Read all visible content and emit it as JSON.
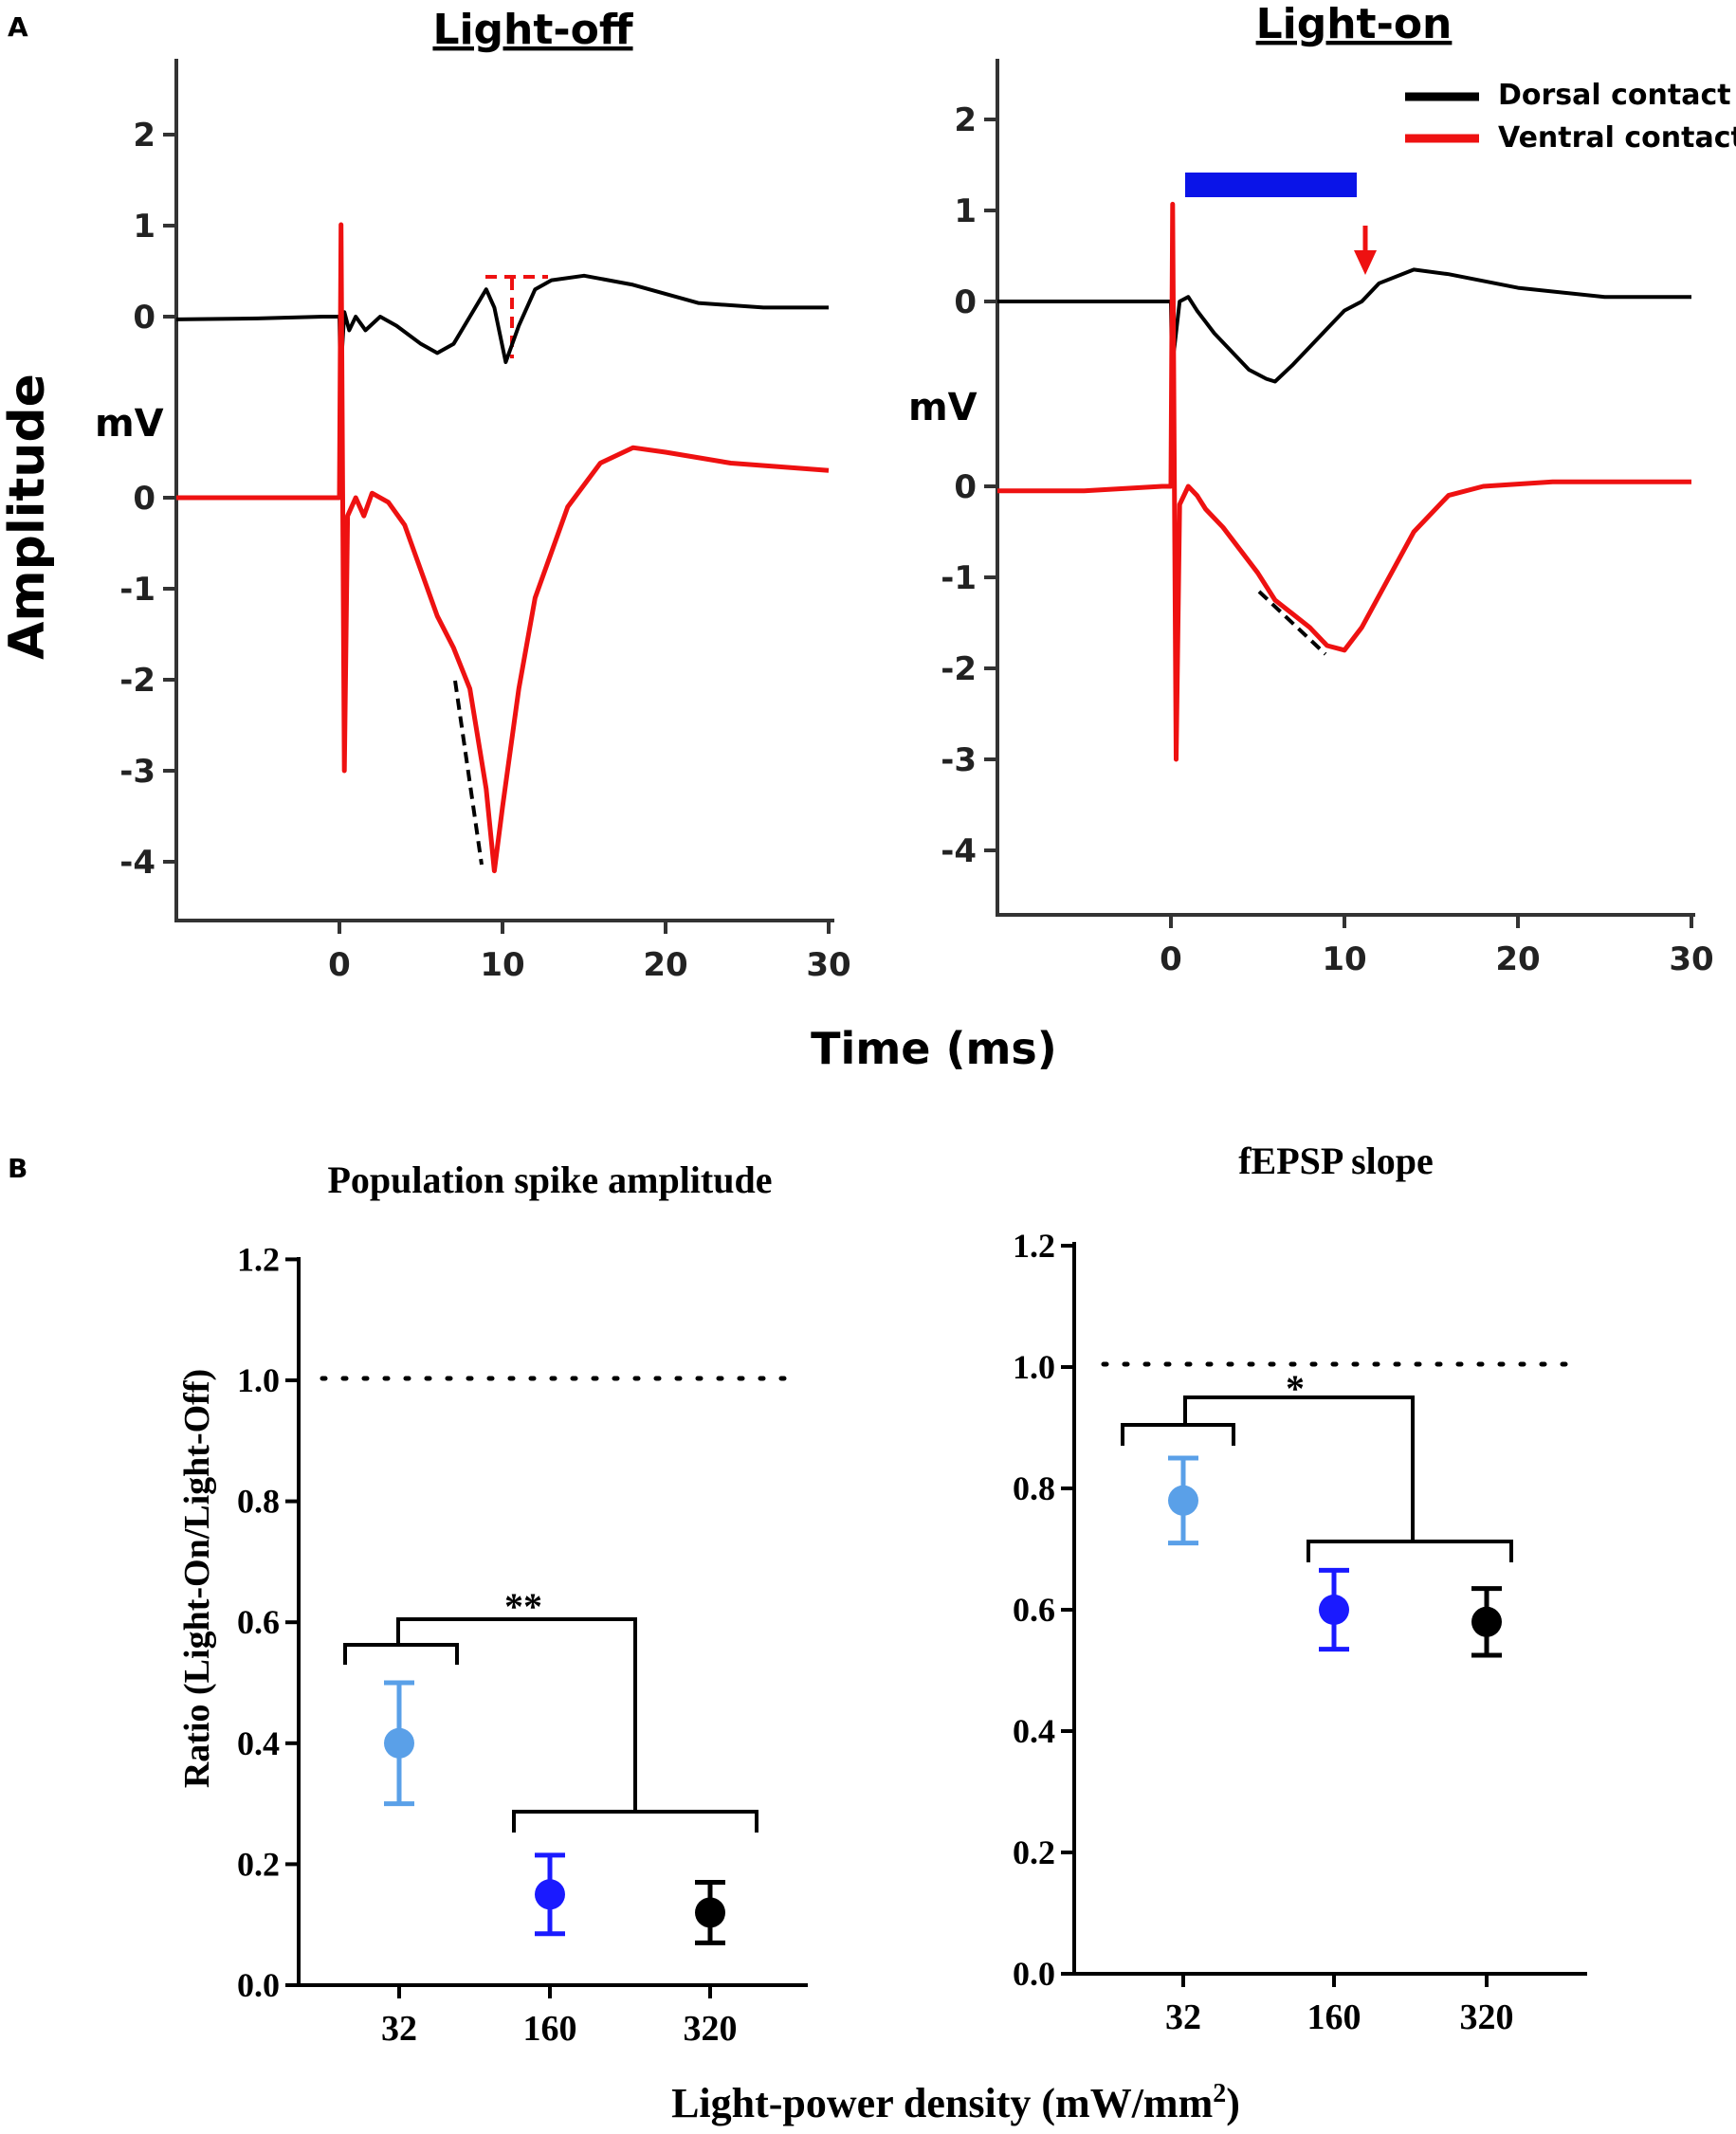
{
  "chart_data": [
    {
      "panel": "A",
      "type": "line",
      "title": "Light-off",
      "ylabel": "Amplitude",
      "yunit": "mV",
      "xlabel": "Time (ms)",
      "xticks": [
        "0",
        "10",
        "20",
        "30"
      ],
      "xlim": [
        -10,
        30
      ],
      "traces": [
        {
          "name": "Dorsal contact",
          "color": "#000000",
          "yticks": [
            "2",
            "1",
            "0"
          ],
          "points": [
            [
              -10,
              -0.03
            ],
            [
              -5,
              -0.02
            ],
            [
              -1,
              0
            ],
            [
              0,
              0
            ],
            [
              0.05,
              -0.6
            ],
            [
              0.15,
              -0.4
            ],
            [
              0.3,
              0.05
            ],
            [
              0.6,
              -0.15
            ],
            [
              1,
              0
            ],
            [
              1.6,
              -0.15
            ],
            [
              2.5,
              0
            ],
            [
              3.5,
              -0.1
            ],
            [
              5,
              -0.3
            ],
            [
              6,
              -0.4
            ],
            [
              7,
              -0.3
            ],
            [
              8,
              0
            ],
            [
              9,
              0.3
            ],
            [
              9.5,
              0.1
            ],
            [
              10.2,
              -0.5
            ],
            [
              11,
              -0.1
            ],
            [
              12,
              0.3
            ],
            [
              13,
              0.4
            ],
            [
              15,
              0.45
            ],
            [
              18,
              0.35
            ],
            [
              22,
              0.15
            ],
            [
              26,
              0.1
            ],
            [
              30,
              0.1
            ]
          ]
        },
        {
          "name": "Ventral contact",
          "color": "#ee1111",
          "yticks": [
            "0",
            "-1",
            "-2",
            "-3",
            "-4"
          ],
          "points": [
            [
              -10,
              0
            ],
            [
              -5,
              0
            ],
            [
              -0.5,
              0
            ],
            [
              0,
              0
            ],
            [
              0.1,
              3
            ],
            [
              0.3,
              -3
            ],
            [
              0.5,
              -0.2
            ],
            [
              1,
              0
            ],
            [
              1.5,
              -0.2
            ],
            [
              2,
              0.05
            ],
            [
              3,
              -0.05
            ],
            [
              4,
              -0.3
            ],
            [
              5,
              -0.8
            ],
            [
              6,
              -1.3
            ],
            [
              7,
              -1.65
            ],
            [
              8,
              -2.1
            ],
            [
              9,
              -3.2
            ],
            [
              9.5,
              -4.1
            ],
            [
              10,
              -3.4
            ],
            [
              11,
              -2.1
            ],
            [
              12,
              -1.1
            ],
            [
              14,
              -0.1
            ],
            [
              16,
              0.38
            ],
            [
              18,
              0.55
            ],
            [
              20,
              0.5
            ],
            [
              24,
              0.38
            ],
            [
              30,
              0.3
            ]
          ]
        }
      ],
      "annotations": [
        "peak-to-trough amplitude (red dashed)",
        "slope line (black dashed)"
      ]
    },
    {
      "panel": "A",
      "type": "line",
      "title": "Light-on",
      "yunit": "mV",
      "xticks": [
        "0",
        "10",
        "20",
        "30"
      ],
      "xlim": [
        -10,
        30
      ],
      "legend": [
        {
          "label": "Dorsal contact",
          "color": "#000000"
        },
        {
          "label": "Ventral contact",
          "color": "#ee1111"
        }
      ],
      "light_pulse_ms": [
        1,
        11
      ],
      "traces": [
        {
          "name": "Dorsal contact",
          "color": "#000000",
          "yticks": [
            "2",
            "1",
            "0"
          ],
          "points": [
            [
              -10,
              0
            ],
            [
              -5,
              0
            ],
            [
              0,
              0
            ],
            [
              0.05,
              -0.7
            ],
            [
              0.2,
              -0.5
            ],
            [
              0.5,
              0
            ],
            [
              1,
              0.05
            ],
            [
              1.5,
              -0.1
            ],
            [
              2.5,
              -0.35
            ],
            [
              3.5,
              -0.55
            ],
            [
              4.5,
              -0.75
            ],
            [
              5.5,
              -0.85
            ],
            [
              6,
              -0.88
            ],
            [
              7,
              -0.7
            ],
            [
              8,
              -0.5
            ],
            [
              9,
              -0.3
            ],
            [
              10,
              -0.1
            ],
            [
              11,
              0
            ],
            [
              12,
              0.2
            ],
            [
              14,
              0.35
            ],
            [
              16,
              0.3
            ],
            [
              20,
              0.15
            ],
            [
              25,
              0.05
            ],
            [
              30,
              0.05
            ]
          ]
        },
        {
          "name": "Ventral contact",
          "color": "#ee1111",
          "yticks": [
            "0",
            "-1",
            "-2",
            "-3",
            "-4"
          ],
          "points": [
            [
              -10,
              -0.05
            ],
            [
              -5,
              -0.05
            ],
            [
              -0.5,
              0
            ],
            [
              0,
              0
            ],
            [
              0.1,
              3.1
            ],
            [
              0.3,
              -3
            ],
            [
              0.5,
              -0.2
            ],
            [
              1,
              0
            ],
            [
              1.5,
              -0.1
            ],
            [
              2,
              -0.25
            ],
            [
              3,
              -0.45
            ],
            [
              4,
              -0.7
            ],
            [
              5,
              -0.95
            ],
            [
              6,
              -1.25
            ],
            [
              7,
              -1.4
            ],
            [
              8,
              -1.55
            ],
            [
              9,
              -1.75
            ],
            [
              10,
              -1.8
            ],
            [
              11,
              -1.55
            ],
            [
              12,
              -1.2
            ],
            [
              14,
              -0.5
            ],
            [
              16,
              -0.1
            ],
            [
              18,
              0
            ],
            [
              22,
              0.05
            ],
            [
              26,
              0.05
            ],
            [
              30,
              0.05
            ]
          ]
        }
      ],
      "annotations": [
        "red arrow at ~11 ms",
        "slope line (black dashed)"
      ]
    },
    {
      "panel": "B",
      "type": "scatter",
      "title": "Population spike amplitude",
      "ylabel": "Ratio (Light-On/Light-Off)",
      "xlabel": "Light-power density (mW/mm²)",
      "categories": [
        "32",
        "160",
        "320"
      ],
      "colors": [
        "#5aa0e8",
        "#1a1aff",
        "#000000"
      ],
      "values": [
        0.4,
        0.15,
        0.12
      ],
      "err": [
        0.1,
        0.065,
        0.05
      ],
      "ylim": [
        0.0,
        1.2
      ],
      "yticks": [
        "0.0",
        "0.2",
        "0.4",
        "0.6",
        "0.8",
        "1.0",
        "1.2"
      ],
      "reference_line": 1.0,
      "significance": "**"
    },
    {
      "panel": "B",
      "type": "scatter",
      "title": "fEPSP slope",
      "categories": [
        "32",
        "160",
        "320"
      ],
      "colors": [
        "#5aa0e8",
        "#1a1aff",
        "#000000"
      ],
      "values": [
        0.78,
        0.6,
        0.58
      ],
      "err": [
        0.07,
        0.065,
        0.055
      ],
      "ylim": [
        0.0,
        1.2
      ],
      "yticks": [
        "0.0",
        "0.2",
        "0.4",
        "0.6",
        "0.8",
        "1.0",
        "1.2"
      ],
      "reference_line": 1.0,
      "significance": "*"
    }
  ],
  "panel_labels": {
    "a": "A",
    "b": "B"
  },
  "axis_labels": {
    "amplitude": "Amplitude",
    "mv": "mV",
    "time": "Time (ms)",
    "ratio": "Ratio (Light-On/Light-Off)",
    "power_prefix": "Light-power density (mW/mm",
    "power_sup": "2",
    "power_suffix": ")"
  }
}
